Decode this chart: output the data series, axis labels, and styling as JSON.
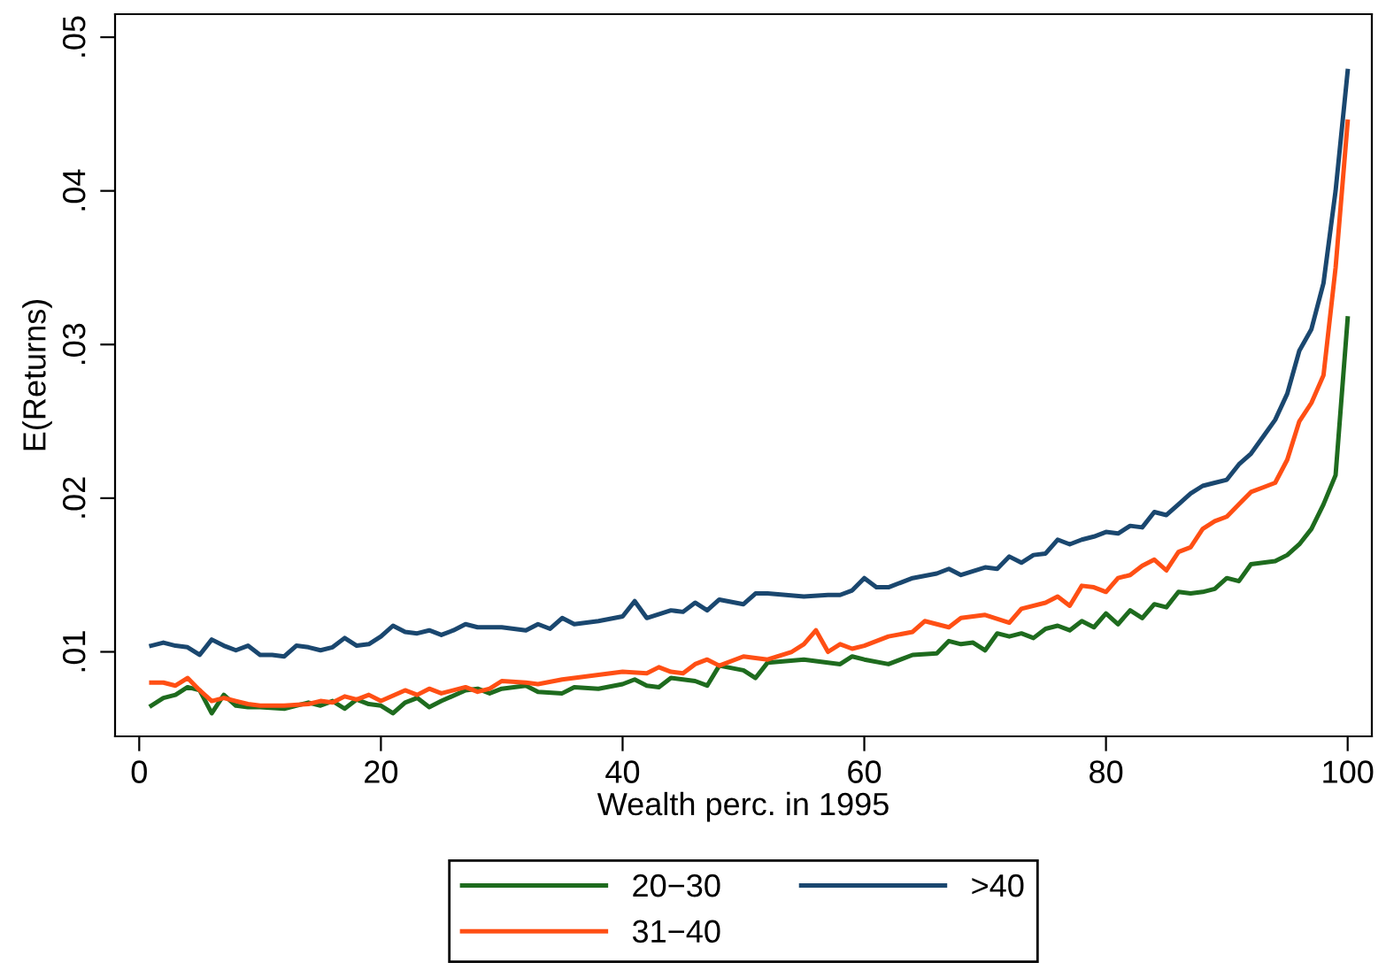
{
  "chart_data": {
    "type": "line",
    "xlabel": "Wealth perc. in 1995",
    "ylabel": "E(Returns)",
    "xlim": [
      -2,
      102
    ],
    "ylim": [
      0.0045,
      0.0515
    ],
    "xticks": [
      0,
      20,
      40,
      60,
      80,
      100
    ],
    "yticks": [
      {
        "value": 0.01,
        "label": ".01"
      },
      {
        "value": 0.02,
        "label": ".02"
      },
      {
        "value": 0.03,
        "label": ".03"
      },
      {
        "value": 0.04,
        "label": ".04"
      },
      {
        "value": 0.05,
        "label": ".05"
      }
    ],
    "grid": false,
    "legend": "bottom",
    "marker": "none",
    "line_style": "solid",
    "series": [
      {
        "name": "20−30",
        "color": "#1e6b1e",
        "x": [
          1,
          2,
          3,
          4,
          5,
          6,
          7,
          8,
          9,
          10,
          12,
          14,
          15,
          16,
          17,
          18,
          19,
          20,
          21,
          22,
          23,
          24,
          25,
          27,
          28,
          29,
          30,
          32,
          33,
          35,
          36,
          38,
          40,
          41,
          42,
          43,
          44,
          45,
          46,
          47,
          48,
          50,
          51,
          52,
          55,
          58,
          59,
          60,
          62,
          64,
          66,
          67,
          68,
          69,
          70,
          71,
          72,
          73,
          74,
          75,
          76,
          77,
          78,
          79,
          80,
          81,
          82,
          83,
          84,
          85,
          86,
          87,
          88,
          89,
          90,
          91,
          92,
          93,
          94,
          95,
          96,
          97,
          98,
          99,
          100
        ],
        "values": [
          0.0065,
          0.007,
          0.0072,
          0.0077,
          0.0075,
          0.006,
          0.0072,
          0.0065,
          0.0064,
          0.0064,
          0.0063,
          0.0067,
          0.0065,
          0.0068,
          0.0063,
          0.0069,
          0.0066,
          0.0065,
          0.006,
          0.0067,
          0.007,
          0.0064,
          0.0068,
          0.0075,
          0.0076,
          0.0073,
          0.0076,
          0.0078,
          0.0074,
          0.0073,
          0.0077,
          0.0076,
          0.0079,
          0.0082,
          0.0078,
          0.0077,
          0.0083,
          0.0082,
          0.0081,
          0.0078,
          0.0091,
          0.0088,
          0.0083,
          0.0093,
          0.0095,
          0.0092,
          0.0097,
          0.0095,
          0.0092,
          0.0098,
          0.0099,
          0.0107,
          0.0105,
          0.0106,
          0.0101,
          0.0112,
          0.011,
          0.0112,
          0.0109,
          0.0115,
          0.0117,
          0.0114,
          0.012,
          0.0116,
          0.0125,
          0.0118,
          0.0127,
          0.0122,
          0.0131,
          0.0129,
          0.0139,
          0.0138,
          0.0139,
          0.0141,
          0.0148,
          0.0146,
          0.0157,
          0.0158,
          0.0159,
          0.0163,
          0.017,
          0.018,
          0.0196,
          0.0215,
          0.0317
        ]
      },
      {
        "name": "31−40",
        "color": "#ff4f14",
        "x": [
          1,
          2,
          3,
          4,
          5,
          6,
          7,
          8,
          9,
          10,
          12,
          14,
          15,
          16,
          17,
          18,
          19,
          20,
          22,
          23,
          24,
          25,
          27,
          28,
          29,
          30,
          32,
          33,
          35,
          36,
          38,
          40,
          42,
          43,
          44,
          45,
          46,
          47,
          48,
          50,
          52,
          54,
          55,
          56,
          57,
          58,
          59,
          60,
          62,
          64,
          65,
          66,
          67,
          68,
          70,
          72,
          73,
          75,
          76,
          77,
          78,
          79,
          80,
          81,
          82,
          83,
          84,
          85,
          86,
          87,
          88,
          89,
          90,
          91,
          92,
          93,
          94,
          95,
          96,
          97,
          98,
          99,
          100
        ],
        "values": [
          0.008,
          0.008,
          0.0078,
          0.0083,
          0.0075,
          0.0068,
          0.007,
          0.0068,
          0.0066,
          0.0065,
          0.0065,
          0.0066,
          0.0068,
          0.0067,
          0.0071,
          0.0069,
          0.0072,
          0.0068,
          0.0075,
          0.0072,
          0.0076,
          0.0073,
          0.0077,
          0.0074,
          0.0076,
          0.0081,
          0.008,
          0.0079,
          0.0082,
          0.0083,
          0.0085,
          0.0087,
          0.0086,
          0.009,
          0.0087,
          0.0086,
          0.0092,
          0.0095,
          0.0091,
          0.0097,
          0.0095,
          0.01,
          0.0105,
          0.0114,
          0.01,
          0.0105,
          0.0102,
          0.0104,
          0.011,
          0.0113,
          0.012,
          0.0118,
          0.0116,
          0.0122,
          0.0124,
          0.0119,
          0.0128,
          0.0132,
          0.0136,
          0.013,
          0.0143,
          0.0142,
          0.0139,
          0.0148,
          0.015,
          0.0156,
          0.016,
          0.0153,
          0.0165,
          0.0168,
          0.018,
          0.0185,
          0.0188,
          0.0196,
          0.0204,
          0.0207,
          0.021,
          0.0225,
          0.025,
          0.0262,
          0.028,
          0.035,
          0.0445
        ]
      },
      {
        "name": ">40",
        "color": "#1a476f",
        "x": [
          1,
          2,
          3,
          4,
          5,
          6,
          7,
          8,
          9,
          10,
          11,
          12,
          13,
          14,
          15,
          16,
          17,
          18,
          19,
          20,
          21,
          22,
          23,
          24,
          25,
          26,
          27,
          28,
          30,
          32,
          33,
          34,
          35,
          36,
          38,
          40,
          41,
          42,
          44,
          45,
          46,
          47,
          48,
          50,
          51,
          52,
          55,
          57,
          58,
          59,
          60,
          61,
          62,
          64,
          66,
          67,
          68,
          70,
          71,
          72,
          73,
          74,
          75,
          76,
          77,
          78,
          79,
          80,
          81,
          82,
          83,
          84,
          85,
          86,
          87,
          88,
          89,
          90,
          91,
          92,
          93,
          94,
          95,
          96,
          97,
          98,
          99,
          100
        ],
        "values": [
          0.0104,
          0.0106,
          0.0104,
          0.0103,
          0.0098,
          0.0108,
          0.0104,
          0.0101,
          0.0104,
          0.0098,
          0.0098,
          0.0097,
          0.0104,
          0.0103,
          0.0101,
          0.0103,
          0.0109,
          0.0104,
          0.0105,
          0.011,
          0.0117,
          0.0113,
          0.0112,
          0.0114,
          0.0111,
          0.0114,
          0.0118,
          0.0116,
          0.0116,
          0.0114,
          0.0118,
          0.0115,
          0.0122,
          0.0118,
          0.012,
          0.0123,
          0.0133,
          0.0122,
          0.0127,
          0.0126,
          0.0132,
          0.0127,
          0.0134,
          0.0131,
          0.0138,
          0.0138,
          0.0136,
          0.0137,
          0.0137,
          0.014,
          0.0148,
          0.0142,
          0.0142,
          0.0148,
          0.0151,
          0.0154,
          0.015,
          0.0155,
          0.0154,
          0.0162,
          0.0158,
          0.0163,
          0.0164,
          0.0173,
          0.017,
          0.0173,
          0.0175,
          0.0178,
          0.0177,
          0.0182,
          0.0181,
          0.0191,
          0.0189,
          0.0196,
          0.0203,
          0.0208,
          0.021,
          0.0212,
          0.0222,
          0.0229,
          0.024,
          0.0251,
          0.0268,
          0.0296,
          0.031,
          0.034,
          0.04,
          0.0478
        ]
      }
    ]
  }
}
